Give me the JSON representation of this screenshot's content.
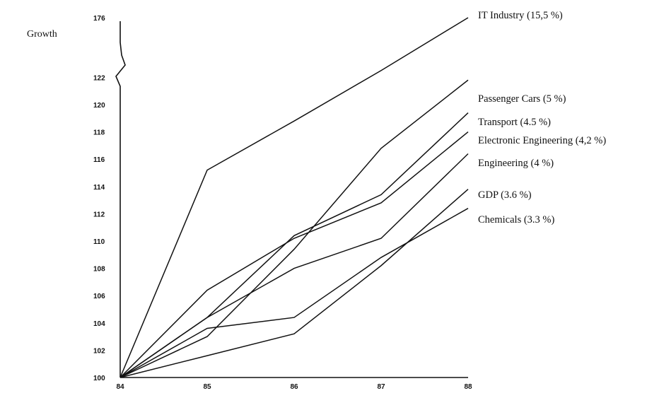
{
  "chart_data": {
    "type": "line",
    "ylabel": "Growth",
    "xlabel": "",
    "x": [
      "84",
      "85",
      "86",
      "87",
      "88"
    ],
    "y_ticks": [
      "100",
      "102",
      "104",
      "106",
      "108",
      "110",
      "112",
      "114",
      "116",
      "118",
      "120",
      "122",
      "176"
    ],
    "y_break": "between 122 and 176",
    "grid": false,
    "series": [
      {
        "name": "IT Industry (15,5 %)",
        "values": [
          100,
          115.2,
          118.8,
          122.5,
          176
        ]
      },
      {
        "name": "Passenger Cars (5 %)",
        "values": [
          100,
          103,
          109.4,
          116.8,
          121.8
        ]
      },
      {
        "name": "Transport (4.5 %)",
        "values": [
          100,
          104.4,
          110.4,
          113.4,
          119.4
        ]
      },
      {
        "name": "Electronic Engineering (4,2 %)",
        "values": [
          100,
          106.4,
          110.2,
          112.8,
          118
        ]
      },
      {
        "name": "Engineering (4 %)",
        "values": [
          100,
          104.4,
          108,
          110.2,
          116.4
        ]
      },
      {
        "name": "GDP (3.6 %)",
        "values": [
          100,
          101.6,
          103.2,
          108.2,
          113.8
        ]
      },
      {
        "name": "Chemicals (3.3 %)",
        "values": [
          100,
          103.6,
          104.4,
          108.8,
          112.4
        ]
      }
    ]
  }
}
